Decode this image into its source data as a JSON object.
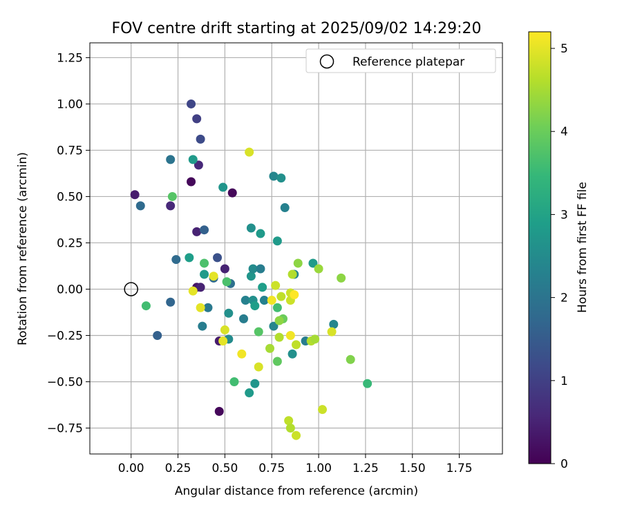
{
  "chart_data": {
    "type": "scatter",
    "title": "FOV centre drift starting at 2025/09/02 14:29:20",
    "xlabel": "Angular distance from reference (arcmin)",
    "ylabel": "Rotation from reference (arcmin)",
    "xlim": [
      -0.22,
      1.98
    ],
    "ylim": [
      -0.89,
      1.33
    ],
    "xticks": [
      "0.00",
      "0.25",
      "0.50",
      "0.75",
      "1.00",
      "1.25",
      "1.50",
      "1.75"
    ],
    "yticks": [
      "1.25",
      "1.00",
      "0.75",
      "0.50",
      "0.25",
      "0.00",
      "−0.25",
      "−0.50",
      "−0.75"
    ],
    "grid": true,
    "legend": {
      "position": "top-right",
      "entries": [
        {
          "label": "Reference platepar",
          "marker": "open-circle"
        }
      ]
    },
    "reference_point": {
      "x": 0.0,
      "y": 0.0
    },
    "colorbar": {
      "label": "Hours from first FF file",
      "colormap": "viridis",
      "range": [
        0,
        5.2
      ],
      "ticks": [
        "0",
        "1",
        "2",
        "3",
        "4",
        "5"
      ],
      "colors": [
        "#440154",
        "#482878",
        "#3e4989",
        "#31688e",
        "#26828e",
        "#1f9e89",
        "#35b779",
        "#6ece58",
        "#b5de2b",
        "#fde725"
      ]
    },
    "points": [
      {
        "x": 0.02,
        "y": 0.51,
        "h": 0.4
      },
      {
        "x": 0.21,
        "y": 0.45,
        "h": 0.6
      },
      {
        "x": 0.32,
        "y": 0.58,
        "h": 0.1
      },
      {
        "x": 0.54,
        "y": 0.52,
        "h": 0.1
      },
      {
        "x": 0.36,
        "y": 0.67,
        "h": 0.6
      },
      {
        "x": 0.35,
        "y": 0.31,
        "h": 0.5
      },
      {
        "x": 0.5,
        "y": 0.11,
        "h": 0.5
      },
      {
        "x": 0.35,
        "y": 0.01,
        "h": 0.3
      },
      {
        "x": 0.37,
        "y": 0.01,
        "h": 0.5
      },
      {
        "x": 0.47,
        "y": -0.28,
        "h": 0.4
      },
      {
        "x": 0.47,
        "y": -0.66,
        "h": 0.1
      },
      {
        "x": 0.32,
        "y": 1.0,
        "h": 1.1
      },
      {
        "x": 0.35,
        "y": 0.92,
        "h": 1.0
      },
      {
        "x": 0.37,
        "y": 0.81,
        "h": 1.2
      },
      {
        "x": 0.39,
        "y": 0.32,
        "h": 1.6
      },
      {
        "x": 0.46,
        "y": 0.17,
        "h": 1.3
      },
      {
        "x": 0.05,
        "y": 0.45,
        "h": 1.8
      },
      {
        "x": 0.21,
        "y": 0.7,
        "h": 2.0
      },
      {
        "x": 0.21,
        "y": -0.07,
        "h": 1.7
      },
      {
        "x": 0.14,
        "y": -0.25,
        "h": 1.6
      },
      {
        "x": 0.24,
        "y": 0.16,
        "h": 1.8
      },
      {
        "x": 0.41,
        "y": -0.1,
        "h": 2.1
      },
      {
        "x": 0.38,
        "y": -0.2,
        "h": 2.2
      },
      {
        "x": 0.44,
        "y": 0.06,
        "h": 1.8
      },
      {
        "x": 0.53,
        "y": 0.03,
        "h": 1.9
      },
      {
        "x": 0.33,
        "y": 0.7,
        "h": 2.8
      },
      {
        "x": 0.49,
        "y": 0.55,
        "h": 2.7
      },
      {
        "x": 0.31,
        "y": 0.17,
        "h": 2.9
      },
      {
        "x": 0.39,
        "y": 0.08,
        "h": 2.8
      },
      {
        "x": 0.52,
        "y": -0.13,
        "h": 2.6
      },
      {
        "x": 0.52,
        "y": -0.27,
        "h": 2.5
      },
      {
        "x": 0.76,
        "y": 0.61,
        "h": 2.4
      },
      {
        "x": 0.8,
        "y": 0.6,
        "h": 2.6
      },
      {
        "x": 0.82,
        "y": 0.44,
        "h": 2.3
      },
      {
        "x": 0.64,
        "y": 0.33,
        "h": 2.6
      },
      {
        "x": 0.69,
        "y": 0.3,
        "h": 2.8
      },
      {
        "x": 0.78,
        "y": 0.26,
        "h": 2.8
      },
      {
        "x": 0.64,
        "y": 0.07,
        "h": 2.7
      },
      {
        "x": 0.65,
        "y": 0.11,
        "h": 2.5
      },
      {
        "x": 0.69,
        "y": 0.11,
        "h": 2.2
      },
      {
        "x": 0.7,
        "y": 0.01,
        "h": 2.9
      },
      {
        "x": 0.61,
        "y": -0.06,
        "h": 2.3
      },
      {
        "x": 0.65,
        "y": -0.06,
        "h": 2.6
      },
      {
        "x": 0.66,
        "y": -0.09,
        "h": 2.9
      },
      {
        "x": 0.71,
        "y": -0.06,
        "h": 2.3
      },
      {
        "x": 0.6,
        "y": -0.16,
        "h": 2.2
      },
      {
        "x": 0.76,
        "y": -0.2,
        "h": 2.4
      },
      {
        "x": 0.63,
        "y": -0.56,
        "h": 2.8
      },
      {
        "x": 0.66,
        "y": -0.51,
        "h": 2.7
      },
      {
        "x": 0.87,
        "y": 0.08,
        "h": 2.4
      },
      {
        "x": 0.86,
        "y": -0.35,
        "h": 2.6
      },
      {
        "x": 0.93,
        "y": -0.28,
        "h": 2.2
      },
      {
        "x": 0.97,
        "y": 0.14,
        "h": 2.8
      },
      {
        "x": 1.08,
        "y": -0.19,
        "h": 2.4
      },
      {
        "x": 1.26,
        "y": -0.51,
        "h": 3.5
      },
      {
        "x": 0.08,
        "y": -0.09,
        "h": 3.6
      },
      {
        "x": 0.22,
        "y": 0.5,
        "h": 3.8
      },
      {
        "x": 0.39,
        "y": 0.14,
        "h": 3.7
      },
      {
        "x": 0.51,
        "y": 0.04,
        "h": 3.7
      },
      {
        "x": 0.55,
        "y": -0.5,
        "h": 3.6
      },
      {
        "x": 0.68,
        "y": -0.23,
        "h": 3.8
      },
      {
        "x": 0.78,
        "y": -0.1,
        "h": 3.6
      },
      {
        "x": 0.78,
        "y": -0.39,
        "h": 3.9
      },
      {
        "x": 0.81,
        "y": -0.16,
        "h": 4.0
      },
      {
        "x": 0.79,
        "y": -0.17,
        "h": 4.3
      },
      {
        "x": 0.74,
        "y": -0.32,
        "h": 4.5
      },
      {
        "x": 0.79,
        "y": -0.26,
        "h": 4.6
      },
      {
        "x": 0.8,
        "y": -0.04,
        "h": 4.7
      },
      {
        "x": 0.77,
        "y": 0.02,
        "h": 4.8
      },
      {
        "x": 0.86,
        "y": 0.08,
        "h": 4.6
      },
      {
        "x": 0.89,
        "y": 0.14,
        "h": 4.3
      },
      {
        "x": 1.0,
        "y": 0.11,
        "h": 4.4
      },
      {
        "x": 1.12,
        "y": 0.06,
        "h": 4.3
      },
      {
        "x": 1.17,
        "y": -0.38,
        "h": 4.2
      },
      {
        "x": 0.85,
        "y": -0.06,
        "h": 4.8
      },
      {
        "x": 0.85,
        "y": -0.02,
        "h": 4.8
      },
      {
        "x": 0.88,
        "y": -0.3,
        "h": 4.7
      },
      {
        "x": 0.96,
        "y": -0.28,
        "h": 4.6
      },
      {
        "x": 0.98,
        "y": -0.27,
        "h": 4.5
      },
      {
        "x": 1.02,
        "y": -0.65,
        "h": 4.8
      },
      {
        "x": 1.07,
        "y": -0.23,
        "h": 4.9
      },
      {
        "x": 0.84,
        "y": -0.71,
        "h": 4.7
      },
      {
        "x": 0.85,
        "y": -0.75,
        "h": 4.6
      },
      {
        "x": 0.88,
        "y": -0.79,
        "h": 4.8
      },
      {
        "x": 0.63,
        "y": 0.74,
        "h": 4.9
      },
      {
        "x": 0.33,
        "y": -0.01,
        "h": 5.0
      },
      {
        "x": 0.37,
        "y": -0.1,
        "h": 5.0
      },
      {
        "x": 0.44,
        "y": 0.07,
        "h": 5.0
      },
      {
        "x": 0.5,
        "y": -0.22,
        "h": 4.9
      },
      {
        "x": 0.49,
        "y": -0.28,
        "h": 5.0
      },
      {
        "x": 0.59,
        "y": -0.35,
        "h": 5.1
      },
      {
        "x": 0.68,
        "y": -0.42,
        "h": 4.9
      },
      {
        "x": 0.75,
        "y": -0.06,
        "h": 5.1
      },
      {
        "x": 0.85,
        "y": -0.25,
        "h": 5.1
      },
      {
        "x": 0.87,
        "y": -0.03,
        "h": 5.2
      }
    ]
  }
}
